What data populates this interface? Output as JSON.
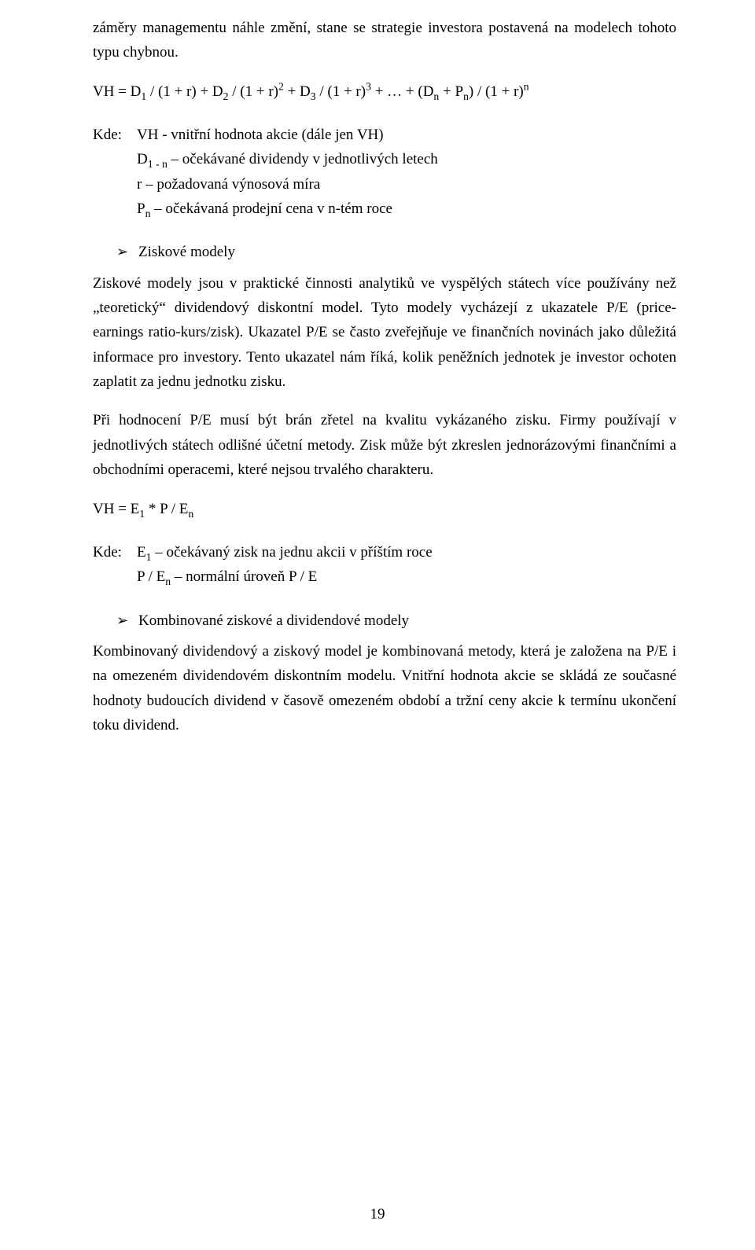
{
  "page_number": "19",
  "p_intro_tail": "záměry managementu náhle změní, stane se strategie investora postavená na modelech tohoto typu chybnou.",
  "formula1_html": "VH =  D<sub>1</sub> / (1 + r) + D<sub>2</sub> / (1 + r)<sup>2</sup> + D<sub>3</sub> / (1 + r)<sup>3</sup> + … + (D<sub>n</sub> + P<sub>n</sub>) / (1 + r)<sup>n</sup>",
  "kde_label": "Kde:",
  "kde1_l1_html": "VH -  vnitřní hodnota akcie (dále jen VH)",
  "kde1_l2_html": "D<sub>1 - n</sub> – očekávané dividendy v jednotlivých letech",
  "kde1_l3_html": "r – požadovaná výnosová míra",
  "kde1_l4_html": "P<sub>n</sub> – očekávaná prodejní cena v n-tém roce",
  "bullet1_label": "Ziskové modely",
  "p_zisk1": "Ziskové modely jsou v praktické činnosti analytiků ve vyspělých státech více používány než „teoretický“ dividendový diskontní model. Tyto modely vycházejí z ukazatele P/E (price-earnings ratio-kurs/zisk). Ukazatel P/E se často zveřejňuje ve finančních novinách jako důležitá informace pro investory. Tento ukazatel nám říká, kolik peněžních jednotek je investor ochoten zaplatit za jednu jednotku zisku.",
  "p_zisk2": "Při hodnocení P/E musí být brán zřetel na kvalitu vykázaného zisku. Firmy používají v jednotlivých státech odlišné účetní metody. Zisk může být zkreslen jednorázovými finančními a obchodními operacemi, které nejsou trvalého charakteru.",
  "formula2_html": "VH = E<sub>1</sub> * P / E<sub>n</sub>",
  "kde2_l1_html": "E<sub>1</sub> – očekávaný zisk na jednu akcii v příštím roce",
  "kde2_l2_html": "P / E<sub>n</sub> – normální úroveň P / E",
  "bullet2_label": "Kombinované ziskové a dividendové modely",
  "p_komb": "Kombinovaný dividendový a ziskový model je kombinovaná metody, která je založena na P/E i na omezeném dividendovém diskontním modelu. Vnitřní hodnota akcie se skládá ze současné hodnoty budoucích dividend v časově omezeném období a tržní ceny akcie k termínu ukončení toku dividend."
}
